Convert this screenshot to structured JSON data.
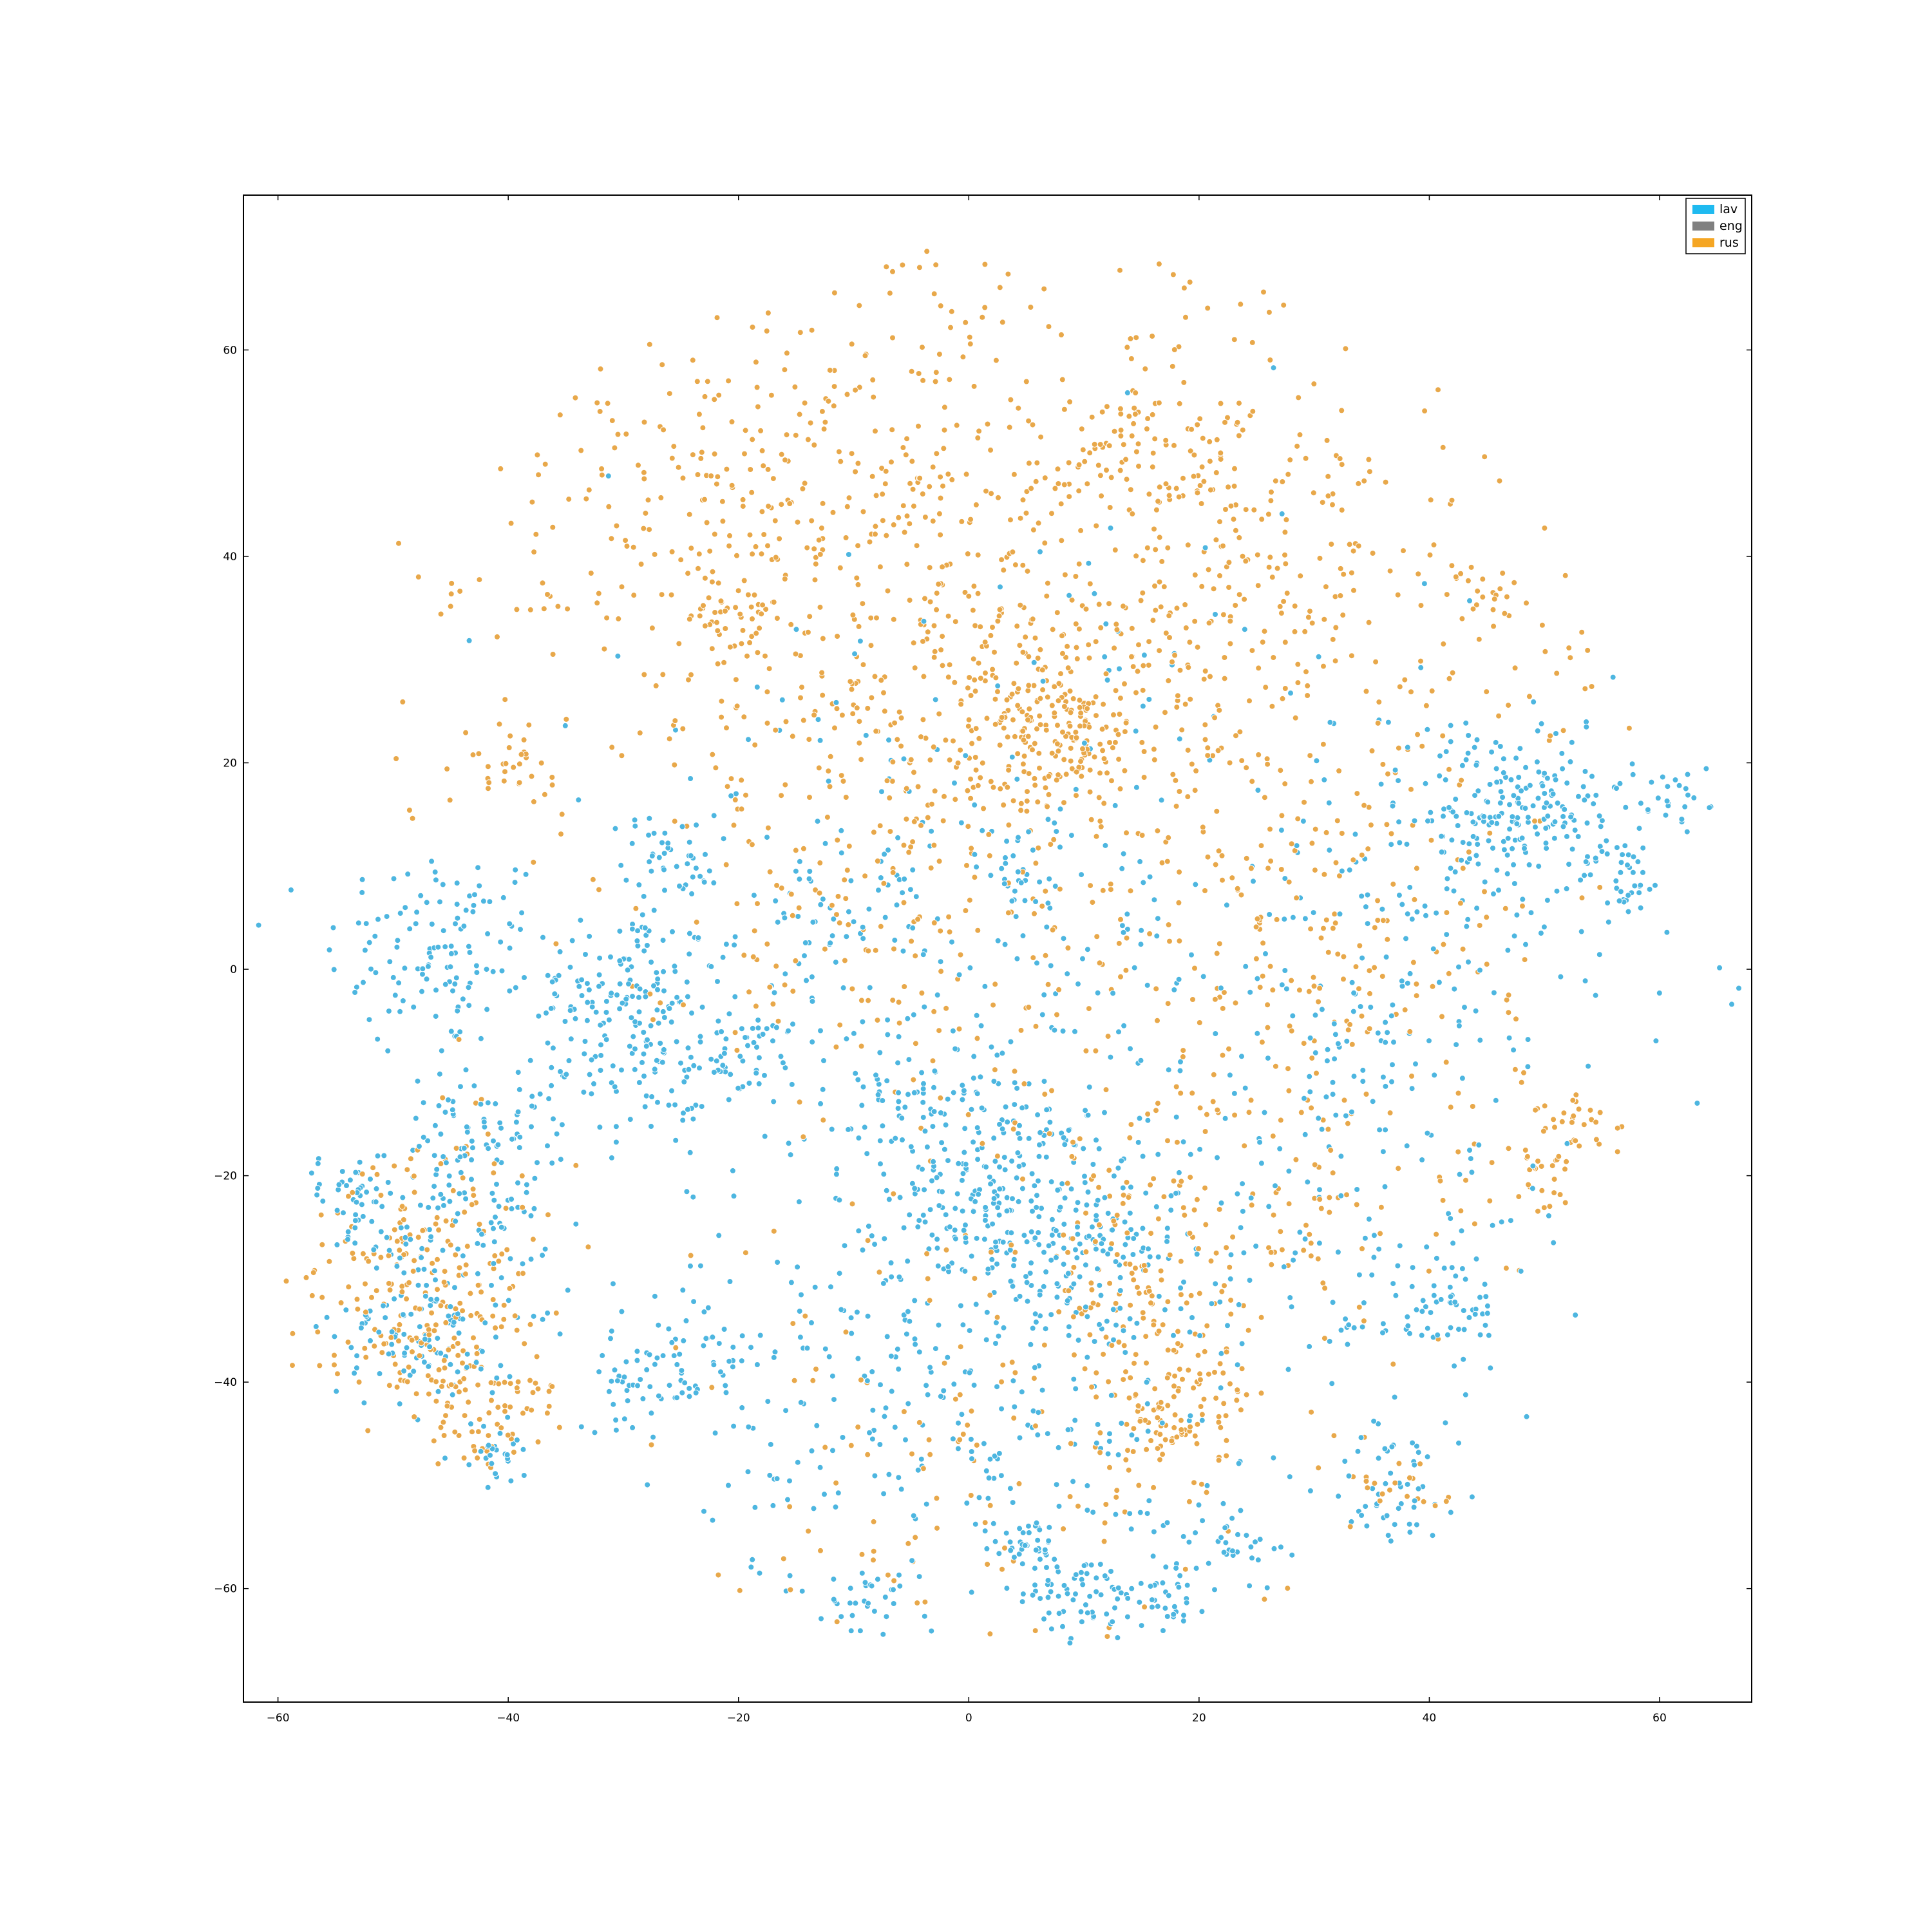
{
  "chart_data": {
    "type": "scatter",
    "title": "",
    "xlabel": "",
    "ylabel": "",
    "xlim": [
      -63,
      68
    ],
    "ylim": [
      -71,
      75
    ],
    "xticks": [
      -60,
      -40,
      -20,
      0,
      20,
      40,
      60
    ],
    "yticks": [
      60,
      40,
      20,
      0,
      -20,
      -40,
      -60
    ],
    "xtick_labels": [
      "−60",
      "−40",
      "−20",
      "0",
      "20",
      "40",
      "60"
    ],
    "ytick_labels": [
      "60",
      "40",
      "20",
      "0",
      "−20",
      "−40",
      "−60"
    ],
    "grid": false,
    "legend_position": "top-right",
    "legend": [
      {
        "name": "lav",
        "color": "#1fbaf0"
      },
      {
        "name": "eng",
        "color": "#808080"
      },
      {
        "name": "rus",
        "color": "#f5a623"
      }
    ],
    "marker_edge_color": "#ffffff",
    "series": [
      {
        "name": "lav",
        "color": "#4db6e0",
        "clusters": [
          {
            "cx": -46,
            "cy": 2,
            "sd": 5,
            "n": 120
          },
          {
            "cx": -30,
            "cy": -2,
            "sd": 4,
            "n": 110
          },
          {
            "cx": -28,
            "cy": -9,
            "sd": 4,
            "n": 90
          },
          {
            "cx": -26,
            "cy": 11,
            "sd": 2,
            "n": 40
          },
          {
            "cx": -20,
            "cy": -9,
            "sd": 2.5,
            "n": 40
          },
          {
            "cx": -12,
            "cy": 4,
            "sd": 4,
            "n": 50
          },
          {
            "cx": 3,
            "cy": -21,
            "sd": 5,
            "n": 200
          },
          {
            "cx": 10,
            "cy": -28,
            "sd": 4,
            "n": 80
          },
          {
            "cx": 46,
            "cy": 14,
            "sd": 4,
            "n": 120
          },
          {
            "cx": 51,
            "cy": 18,
            "sd": 3,
            "n": 60
          },
          {
            "cx": 57,
            "cy": 9,
            "sd": 2,
            "n": 40
          },
          {
            "cx": 61,
            "cy": 16,
            "sd": 1.5,
            "n": 25
          },
          {
            "cx": 41,
            "cy": -33,
            "sd": 3,
            "n": 60
          },
          {
            "cx": 37,
            "cy": -50,
            "sd": 3,
            "n": 50
          },
          {
            "cx": 10,
            "cy": -61,
            "sd": 2,
            "n": 50
          },
          {
            "cx": 17,
            "cy": -60,
            "sd": 2,
            "n": 40
          },
          {
            "cx": 5,
            "cy": -56,
            "sd": 2,
            "n": 40
          },
          {
            "cx": -9,
            "cy": -61,
            "sd": 1.5,
            "n": 25
          },
          {
            "cx": -24,
            "cy": -38,
            "sd": 3,
            "n": 50
          },
          {
            "cx": -29,
            "cy": -40,
            "sd": 2,
            "n": 30
          },
          {
            "cx": -6,
            "cy": -12,
            "sd": 3,
            "n": 40
          },
          {
            "cx": 4,
            "cy": 9,
            "sd": 1.5,
            "n": 20
          },
          {
            "cx": -54,
            "cy": -22,
            "sd": 2,
            "n": 40
          },
          {
            "cx": -47,
            "cy": -35,
            "sd": 4,
            "n": 110
          },
          {
            "cx": -44,
            "cy": -25,
            "sd": 5,
            "n": 100
          },
          {
            "cx": -43,
            "cy": -15,
            "sd": 3,
            "n": 60
          },
          {
            "cx": -41,
            "cy": -47,
            "sd": 1.5,
            "n": 25
          },
          {
            "cx": 23,
            "cy": -55,
            "sd": 2,
            "n": 30
          },
          {
            "cx": 0,
            "cy": -40,
            "sd": 12,
            "n": 320
          },
          {
            "cx": 30,
            "cy": -20,
            "sd": 12,
            "n": 150
          },
          {
            "cx": 0,
            "cy": 0,
            "sd": 20,
            "n": 350
          },
          {
            "cx": 40,
            "cy": 5,
            "sd": 12,
            "n": 150
          }
        ]
      },
      {
        "name": "rus",
        "color": "#e8a84a",
        "clusters": [
          {
            "cx": 0,
            "cy": 35,
            "sd": 18,
            "n": 600
          },
          {
            "cx": -20,
            "cy": 45,
            "sd": 12,
            "n": 220
          },
          {
            "cx": 25,
            "cy": 35,
            "sd": 14,
            "n": 300
          },
          {
            "cx": 5,
            "cy": 24,
            "sd": 4,
            "n": 120
          },
          {
            "cx": 9,
            "cy": 22,
            "sd": 3,
            "n": 80
          },
          {
            "cx": -20,
            "cy": 34,
            "sd": 2,
            "n": 30
          },
          {
            "cx": 13,
            "cy": 51,
            "sd": 2,
            "n": 25
          },
          {
            "cx": 19,
            "cy": 48,
            "sd": 2,
            "n": 25
          },
          {
            "cx": 45,
            "cy": 37,
            "sd": 1.5,
            "n": 20
          },
          {
            "cx": -40,
            "cy": 20,
            "sd": 2,
            "n": 30
          },
          {
            "cx": -47,
            "cy": -28,
            "sd": 6,
            "n": 180
          },
          {
            "cx": -46,
            "cy": -37,
            "sd": 3,
            "n": 80
          },
          {
            "cx": -43,
            "cy": -45,
            "sd": 2,
            "n": 30
          },
          {
            "cx": -39,
            "cy": -41,
            "sd": 1.5,
            "n": 20
          },
          {
            "cx": 16,
            "cy": -45,
            "sd": 3,
            "n": 40
          },
          {
            "cx": 20,
            "cy": -43,
            "sd": 3,
            "n": 40
          },
          {
            "cx": 17,
            "cy": -38,
            "sd": 4,
            "n": 50
          },
          {
            "cx": 13,
            "cy": -30,
            "sd": 4,
            "n": 50
          },
          {
            "cx": 49,
            "cy": -20,
            "sd": 2,
            "n": 30
          },
          {
            "cx": 53,
            "cy": -15,
            "sd": 2,
            "n": 30
          },
          {
            "cx": 38,
            "cy": -50,
            "sd": 2,
            "n": 20
          },
          {
            "cx": 24,
            "cy": -20,
            "sd": 12,
            "n": 200
          },
          {
            "cx": 30,
            "cy": 5,
            "sd": 10,
            "n": 150
          },
          {
            "cx": -10,
            "cy": 10,
            "sd": 10,
            "n": 130
          },
          {
            "cx": 0,
            "cy": -45,
            "sd": 12,
            "n": 120
          }
        ]
      }
    ]
  }
}
